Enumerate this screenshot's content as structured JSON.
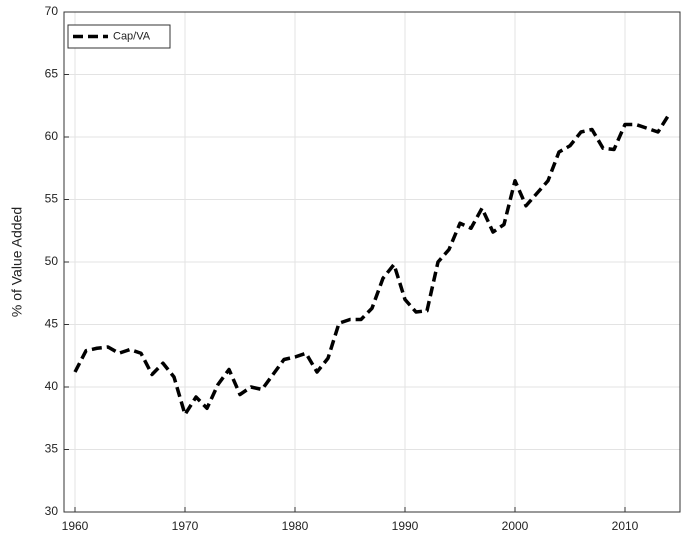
{
  "chart_data": {
    "type": "line",
    "ylabel": "% of Value Added",
    "x": [
      1960,
      1961,
      1962,
      1963,
      1964,
      1965,
      1966,
      1967,
      1968,
      1969,
      1970,
      1971,
      1972,
      1973,
      1974,
      1975,
      1976,
      1977,
      1978,
      1979,
      1980,
      1981,
      1982,
      1983,
      1984,
      1985,
      1986,
      1987,
      1988,
      1989,
      1990,
      1991,
      1992,
      1993,
      1994,
      1995,
      1996,
      1997,
      1998,
      1999,
      2000,
      2001,
      2002,
      2003,
      2004,
      2005,
      2006,
      2007,
      2008,
      2009,
      2010,
      2011,
      2012,
      2013,
      2014
    ],
    "series": [
      {
        "name": "Cap/VA",
        "color": "#000000",
        "values": [
          41.2,
          42.9,
          43.1,
          43.2,
          42.7,
          43.0,
          42.7,
          41.0,
          41.9,
          40.8,
          37.8,
          39.2,
          38.3,
          40.2,
          41.4,
          39.4,
          40.0,
          39.8,
          41.0,
          42.2,
          42.4,
          42.7,
          41.2,
          42.3,
          45.1,
          45.4,
          45.4,
          46.3,
          48.7,
          49.8,
          47.0,
          46.0,
          46.1,
          50.0,
          51.0,
          53.1,
          52.7,
          54.3,
          52.4,
          53.0,
          56.5,
          54.5,
          55.5,
          56.5,
          58.8,
          59.3,
          60.4,
          60.6,
          59.1,
          59.0,
          61.0,
          61.0,
          60.7,
          60.4,
          61.8
        ]
      }
    ],
    "xlim": [
      1959,
      2015
    ],
    "xticks": [
      1960,
      1970,
      1980,
      1990,
      2000,
      2010
    ],
    "ylim": [
      30,
      70
    ],
    "yticks": [
      30,
      35,
      40,
      45,
      50,
      55,
      60,
      65,
      70
    ],
    "grid": true,
    "legend": "upper-left"
  }
}
